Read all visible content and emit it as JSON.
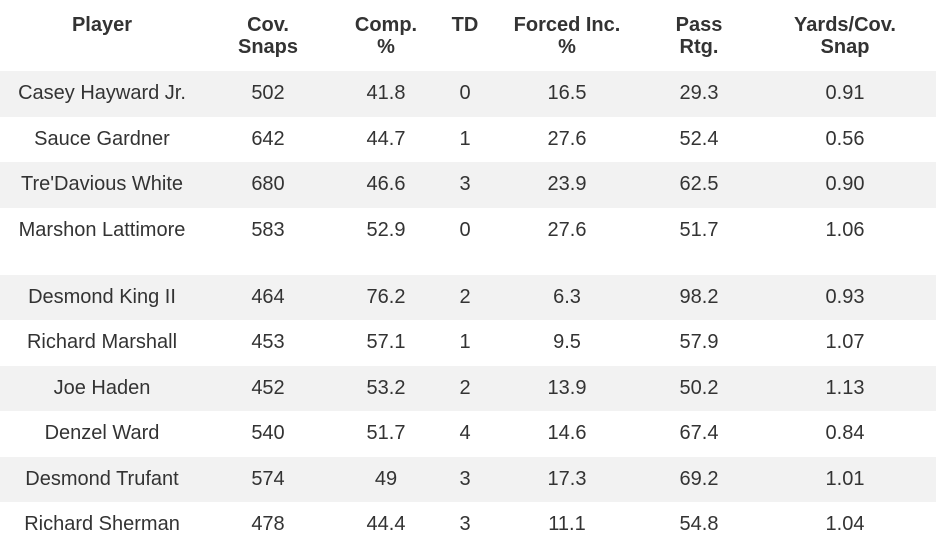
{
  "table": {
    "headers": [
      [
        "Player"
      ],
      [
        "Cov.",
        "Snaps"
      ],
      [
        "Comp.",
        "%"
      ],
      [
        "TD"
      ],
      [
        "Forced Inc.",
        "%"
      ],
      [
        "Pass",
        "Rtg."
      ],
      [
        "Yards/Cov.",
        "Snap"
      ]
    ],
    "rows": [
      [
        "Casey Hayward Jr.",
        "502",
        "41.8",
        "0",
        "16.5",
        "29.3",
        "0.91"
      ],
      [
        "Sauce Gardner",
        "642",
        "44.7",
        "1",
        "27.6",
        "52.4",
        "0.56"
      ],
      [
        "Tre'Davious White",
        "680",
        "46.6",
        "3",
        "23.9",
        "62.5",
        "0.90"
      ],
      [
        "Marshon Lattimore",
        "583",
        "52.9",
        "0",
        "27.6",
        "51.7",
        "1.06"
      ],
      [
        "Desmond King II",
        "464",
        "76.2",
        "2",
        "6.3",
        "98.2",
        "0.93"
      ],
      [
        "Richard Marshall",
        "453",
        "57.1",
        "1",
        "9.5",
        "57.9",
        "1.07"
      ],
      [
        "Joe Haden",
        "452",
        "53.2",
        "2",
        "13.9",
        "50.2",
        "1.13"
      ],
      [
        "Denzel Ward",
        "540",
        "51.7",
        "4",
        "14.6",
        "67.4",
        "0.84"
      ],
      [
        "Desmond Trufant",
        "574",
        "49",
        "3",
        "17.3",
        "69.2",
        "1.01"
      ],
      [
        "Richard Sherman",
        "478",
        "44.4",
        "3",
        "11.1",
        "54.8",
        "1.04"
      ]
    ]
  }
}
